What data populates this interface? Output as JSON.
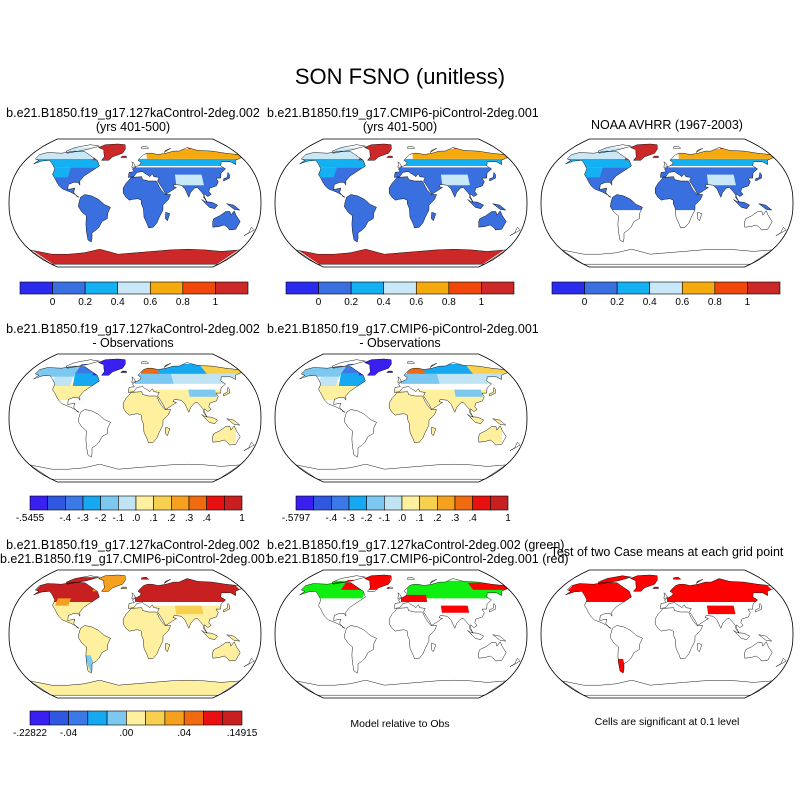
{
  "figure_title": "SON FSNO (unitless)",
  "colors": {
    "ocean": "#ffffff",
    "coast": "#000000",
    "snow_top": [
      "#2b2bf0",
      "#3a6fe0",
      "#14b1f2",
      "#c8e8f8",
      "#f5aa10",
      "#f0480a",
      "#cc2828"
    ],
    "diff": [
      "#3a20f0",
      "#3057e0",
      "#3b78e8",
      "#16a8f0",
      "#7cc8f0",
      "#c0e4f4",
      "#fff0a0",
      "#f8d050",
      "#f6a020",
      "#f06a10",
      "#e81010",
      "#c82020"
    ],
    "sig_green": "#10f010",
    "sig_red": "#ff0000"
  },
  "panels": {
    "p1": {
      "title1": "b.e21.B1850.f19_g17.127kaControl-2deg.002",
      "title2": "(yrs 401-500)"
    },
    "p2": {
      "title1": "b.e21.B1850.f19_g17.CMIP6-piControl-2deg.001",
      "title2": "(yrs 401-500)"
    },
    "p3": {
      "title1": "NOAA AVHRR (1967-2003)",
      "title2": ""
    },
    "p4": {
      "title1": "b.e21.B1850.f19_g17.127kaControl-2deg.002",
      "title2": "- Observations"
    },
    "p5": {
      "title1": "b.e21.B1850.f19_g17.CMIP6-piControl-2deg.001",
      "title2": "- Observations"
    },
    "p7": {
      "title1": "b.e21.B1850.f19_g17.127kaControl-2deg.002",
      "title2": "b.e21.B1850.f19_g17.CMIP6-piControl-2deg.001"
    },
    "p8": {
      "title1": "b.e21.B1850.f19_g17.127kaControl-2deg.002 (green)",
      "title2": "b.e21.B1850.f19_g17.CMIP6-piControl-2deg.001 (red)",
      "caption": "Model relative to Obs"
    },
    "p9": {
      "title1": "Test of two Case means at each grid point",
      "caption": "Cells are significant at 0.1 level"
    }
  },
  "colorbars": {
    "top": {
      "labels": [
        "0",
        "0.2",
        "0.4",
        "0.6",
        "0.8",
        "1"
      ]
    },
    "diff1": {
      "labels": [
        "-.5455",
        "-.4",
        "-.3",
        "-.2",
        "-.1",
        ".0",
        ".1",
        ".2",
        ".3",
        ".4",
        "1"
      ]
    },
    "diff2": {
      "labels": [
        "-.5797",
        "-.4",
        "-.3",
        "-.2",
        "-.1",
        ".0",
        ".1",
        ".2",
        ".3",
        ".4",
        "1"
      ]
    },
    "bottom": {
      "labels": [
        "-.22822",
        "-.04",
        ".00",
        ".04",
        ".14915"
      ]
    }
  },
  "chart_data": [
    {
      "type": "heatmap",
      "title": "b.e21.B1850.f19_g17.127kaControl-2deg.002 (yrs 401-500)",
      "colorbar_levels": [
        0,
        0.2,
        0.4,
        0.6,
        0.8,
        1
      ],
      "summary": {
        "most_land": 0.1,
        "boreal_belt": 0.7,
        "greenland": 1.0,
        "antarctica": 1.0
      }
    },
    {
      "type": "heatmap",
      "title": "b.e21.B1850.f19_g17.CMIP6-piControl-2deg.001 (yrs 401-500)",
      "colorbar_levels": [
        0,
        0.2,
        0.4,
        0.6,
        0.8,
        1
      ],
      "summary": {
        "most_land": 0.1,
        "boreal_belt": 0.7,
        "greenland": 1.0,
        "antarctica": 1.0
      }
    },
    {
      "type": "heatmap",
      "title": "NOAA AVHRR (1967-2003)",
      "colorbar_levels": [
        0,
        0.2,
        0.4,
        0.6,
        0.8,
        1
      ],
      "summary": {
        "most_land": 0.1,
        "boreal_belt": 0.7,
        "greenland": 1.0
      }
    },
    {
      "type": "heatmap",
      "title": "b.e21.B1850.f19_g17.127kaControl-2deg.002 - Observations",
      "colorbar_levels": [
        -0.5455,
        -0.4,
        -0.3,
        -0.2,
        -0.1,
        0.0,
        0.1,
        0.2,
        0.3,
        0.4,
        1
      ]
    },
    {
      "type": "heatmap",
      "title": "b.e21.B1850.f19_g17.CMIP6-piControl-2deg.001 - Observations",
      "colorbar_levels": [
        -0.5797,
        -0.4,
        -0.3,
        -0.2,
        -0.1,
        0.0,
        0.1,
        0.2,
        0.3,
        0.4,
        1
      ]
    },
    {
      "type": "heatmap",
      "title": "b.e21.B1850.f19_g17.127kaControl-2deg.002 - b.e21.B1850.f19_g17.CMIP6-piControl-2deg.001",
      "colorbar_levels": [
        -0.22822,
        -0.04,
        0.0,
        0.04,
        0.14915
      ]
    },
    {
      "type": "heatmap",
      "title": "b.e21.B1850.f19_g17.127kaControl-2deg.002 (green) b.e21.B1850.f19_g17.CMIP6-piControl-2deg.001 (red)",
      "caption": "Model relative to Obs"
    },
    {
      "type": "heatmap",
      "title": "Test of two Case means at each grid point",
      "caption": "Cells are significant at 0.1 level"
    }
  ]
}
